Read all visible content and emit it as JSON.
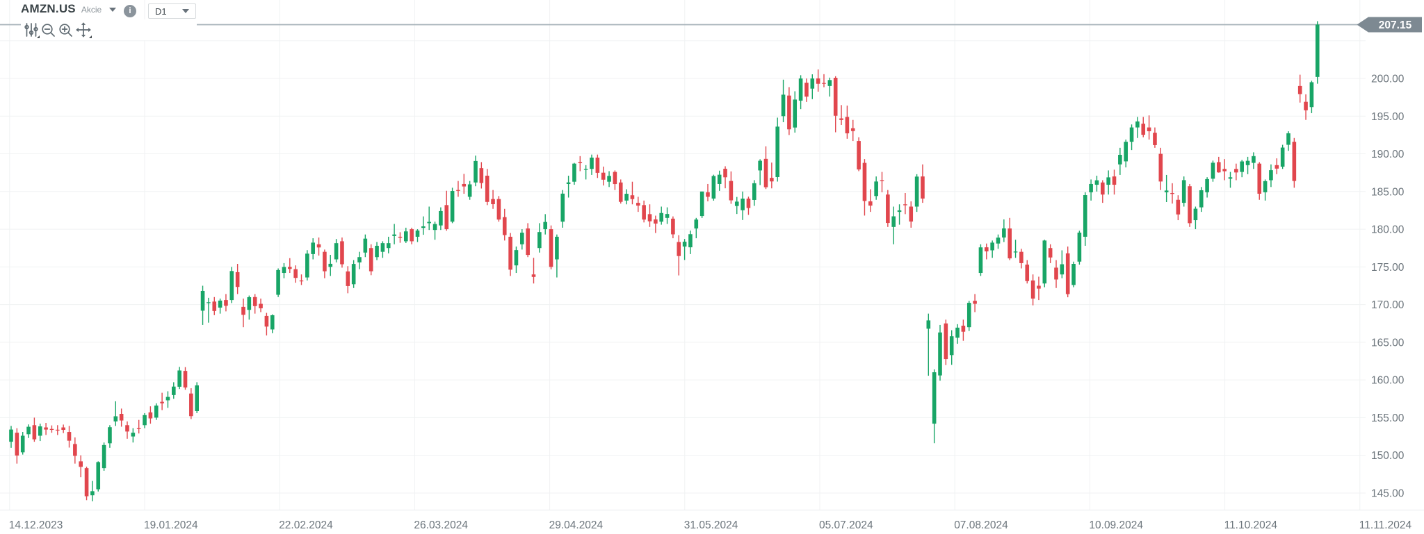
{
  "header": {
    "symbol": "AMZN.US",
    "instrument_label": "Akcie",
    "info_glyph": "i",
    "timeframe_value": "D1",
    "current_price_label": "207.15"
  },
  "toolbar": {
    "icons": [
      "indicators",
      "zoom-out",
      "zoom-in",
      "pan-crosshair"
    ]
  },
  "colors": {
    "background": "#ffffff",
    "grid_line": "#f0f2f3",
    "axis_separator": "#e8eaec",
    "axis_text": "#6c757c",
    "price_line": "#a7b3ba",
    "badge_bg": "#7d8992",
    "badge_text": "#ffffff",
    "icon": "#5f6a71",
    "symbol_text": "#3a4347"
  },
  "chart_data": {
    "type": "candlestick",
    "title": "AMZN.US D1 daily candlestick chart",
    "timeframe": "D1",
    "current_price": 207.15,
    "up_color": "#18a566",
    "down_color": "#e1464d",
    "grid": true,
    "y_axis": {
      "min": 143.5,
      "max": 208.5,
      "tick_step": 5,
      "tick_labels": [
        "200.00",
        "195.00",
        "190.00",
        "185.00",
        "180.00",
        "175.00",
        "170.00",
        "165.00",
        "160.00",
        "155.00",
        "150.00",
        "145.00"
      ]
    },
    "x_axis": {
      "tick_labels": [
        "14.12.2023",
        "19.01.2024",
        "22.02.2024",
        "26.03.2024",
        "29.04.2024",
        "31.05.2024",
        "05.07.2024",
        "07.08.2024",
        "10.09.2024",
        "11.10.2024",
        "11.11.2024"
      ]
    },
    "candles_ohlc": [
      [
        151.8,
        153.9,
        151.0,
        153.42
      ],
      [
        153.0,
        153.6,
        148.9,
        149.97
      ],
      [
        150.4,
        153.1,
        150.1,
        152.6
      ],
      [
        152.8,
        154.1,
        152.3,
        153.79
      ],
      [
        154.0,
        155.0,
        151.8,
        152.12
      ],
      [
        152.6,
        154.2,
        151.9,
        153.84
      ],
      [
        153.7,
        154.3,
        152.7,
        153.42
      ],
      [
        153.5,
        153.97,
        153.0,
        153.41
      ],
      [
        153.4,
        154.0,
        152.7,
        153.34
      ],
      [
        153.7,
        154.08,
        152.95,
        153.38
      ],
      [
        153.1,
        153.9,
        151.03,
        151.94
      ],
      [
        151.5,
        152.38,
        148.9,
        149.93
      ],
      [
        149.2,
        150.0,
        147.1,
        148.47
      ],
      [
        148.3,
        148.5,
        144.05,
        144.57
      ],
      [
        144.7,
        146.6,
        143.9,
        145.24
      ],
      [
        145.5,
        149.2,
        145.2,
        149.1
      ],
      [
        148.3,
        151.7,
        147.95,
        151.37
      ],
      [
        151.6,
        154.0,
        151.0,
        153.73
      ],
      [
        154.5,
        157.17,
        153.9,
        155.18
      ],
      [
        155.5,
        156.2,
        153.8,
        154.62
      ],
      [
        154.0,
        154.5,
        152.2,
        153.16
      ],
      [
        152.5,
        153.6,
        151.7,
        153.0
      ],
      [
        153.6,
        154.7,
        152.9,
        153.5
      ],
      [
        154.0,
        155.6,
        153.6,
        155.34
      ],
      [
        155.7,
        156.5,
        154.2,
        154.9
      ],
      [
        155.0,
        156.9,
        154.7,
        156.6
      ],
      [
        157.1,
        158.3,
        156.0,
        156.9
      ],
      [
        157.3,
        158.5,
        156.3,
        157.75
      ],
      [
        158.0,
        159.7,
        157.5,
        159.12
      ],
      [
        159.1,
        161.73,
        158.8,
        161.26
      ],
      [
        161.2,
        161.7,
        158.7,
        159.0
      ],
      [
        158.2,
        158.9,
        154.81,
        155.2
      ],
      [
        155.87,
        159.7,
        155.6,
        159.28
      ],
      [
        169.19,
        172.5,
        167.3,
        171.81
      ],
      [
        170.2,
        170.9,
        167.6,
        170.31
      ],
      [
        170.4,
        171.0,
        168.6,
        169.15
      ],
      [
        169.6,
        170.8,
        168.8,
        170.53
      ],
      [
        170.6,
        171.4,
        169.1,
        169.84
      ],
      [
        170.6,
        175.0,
        170.2,
        174.45
      ],
      [
        174.3,
        175.4,
        171.4,
        172.34
      ],
      [
        169.7,
        170.8,
        167.0,
        168.64
      ],
      [
        169.3,
        171.2,
        168.0,
        170.98
      ],
      [
        171.0,
        171.4,
        168.8,
        169.8
      ],
      [
        170.1,
        170.8,
        169.0,
        169.51
      ],
      [
        168.5,
        168.9,
        165.9,
        167.08
      ],
      [
        166.7,
        168.7,
        166.2,
        168.59
      ],
      [
        171.3,
        174.8,
        171.0,
        174.58
      ],
      [
        174.2,
        175.5,
        173.5,
        174.99
      ],
      [
        175.0,
        176.16,
        174.2,
        174.73
      ],
      [
        174.7,
        175.2,
        172.9,
        173.54
      ],
      [
        173.2,
        174.0,
        172.6,
        173.16
      ],
      [
        173.6,
        177.22,
        173.2,
        176.76
      ],
      [
        176.7,
        178.8,
        176.0,
        178.22
      ],
      [
        178.0,
        178.9,
        176.5,
        177.58
      ],
      [
        177.0,
        177.3,
        173.5,
        174.42
      ],
      [
        175.0,
        176.6,
        173.8,
        175.41
      ],
      [
        176.0,
        178.7,
        175.6,
        178.15
      ],
      [
        178.4,
        178.9,
        174.9,
        175.35
      ],
      [
        174.4,
        175.1,
        171.5,
        172.46
      ],
      [
        172.7,
        175.9,
        172.2,
        175.39
      ],
      [
        175.6,
        177.0,
        174.7,
        176.3
      ],
      [
        176.9,
        179.3,
        176.3,
        178.75
      ],
      [
        177.5,
        178.0,
        173.9,
        174.42
      ],
      [
        176.3,
        178.3,
        175.9,
        177.8
      ],
      [
        177.0,
        178.4,
        176.2,
        178.15
      ],
      [
        177.5,
        179.0,
        176.8,
        178.15
      ],
      [
        179.1,
        180.7,
        178.0,
        179.3
      ],
      [
        179.0,
        179.6,
        178.2,
        178.87
      ],
      [
        178.4,
        180.2,
        178.17,
        179.71
      ],
      [
        180.0,
        180.2,
        178.0,
        178.4
      ],
      [
        179.0,
        180.0,
        178.3,
        179.83
      ],
      [
        180.17,
        181.7,
        179.26,
        180.38
      ],
      [
        180.8,
        183.0,
        179.9,
        180.97
      ],
      [
        179.9,
        181.0,
        178.6,
        180.69
      ],
      [
        180.5,
        182.9,
        179.9,
        182.41
      ],
      [
        183.2,
        185.1,
        179.8,
        180.0
      ],
      [
        181.0,
        185.5,
        180.8,
        185.07
      ],
      [
        185.2,
        186.4,
        184.3,
        185.19
      ],
      [
        186.0,
        187.34,
        184.7,
        185.67
      ],
      [
        184.3,
        186.4,
        183.9,
        185.95
      ],
      [
        186.2,
        189.77,
        185.7,
        189.05
      ],
      [
        188.1,
        188.9,
        185.4,
        186.13
      ],
      [
        187.1,
        188.0,
        183.2,
        183.62
      ],
      [
        184.0,
        185.2,
        182.7,
        183.32
      ],
      [
        184.0,
        184.4,
        181.0,
        181.28
      ],
      [
        181.6,
        182.7,
        178.5,
        179.22
      ],
      [
        179.0,
        179.5,
        173.8,
        174.63
      ],
      [
        175.2,
        177.7,
        174.2,
        177.23
      ],
      [
        178.0,
        180.0,
        177.3,
        179.54
      ],
      [
        180.1,
        180.8,
        176.3,
        176.59
      ],
      [
        174.0,
        176.2,
        172.8,
        173.67
      ],
      [
        177.5,
        180.8,
        176.9,
        179.62
      ],
      [
        180.0,
        182.0,
        179.3,
        180.96
      ],
      [
        180.0,
        180.5,
        174.68,
        175.0
      ],
      [
        176.0,
        179.3,
        173.6,
        179.0
      ],
      [
        181.0,
        185.2,
        180.2,
        184.72
      ],
      [
        186.0,
        187.1,
        184.2,
        186.21
      ],
      [
        186.3,
        188.8,
        185.9,
        188.7
      ],
      [
        188.9,
        189.7,
        187.7,
        188.76
      ],
      [
        187.9,
        188.5,
        186.6,
        188.0
      ],
      [
        188.0,
        189.9,
        187.2,
        189.5
      ],
      [
        189.5,
        189.9,
        186.8,
        187.48
      ],
      [
        187.5,
        188.31,
        185.8,
        186.57
      ],
      [
        186.3,
        187.7,
        185.6,
        187.07
      ],
      [
        187.6,
        187.8,
        185.2,
        185.99
      ],
      [
        186.2,
        186.6,
        183.4,
        183.63
      ],
      [
        183.8,
        185.3,
        183.3,
        184.7
      ],
      [
        184.5,
        186.3,
        183.3,
        184.0
      ],
      [
        183.5,
        184.3,
        182.3,
        183.13
      ],
      [
        183.2,
        183.8,
        180.9,
        181.28
      ],
      [
        182.0,
        183.3,
        180.3,
        181.05
      ],
      [
        181.3,
        181.8,
        179.5,
        180.75
      ],
      [
        181.0,
        183.0,
        180.6,
        182.15
      ],
      [
        181.5,
        182.9,
        180.7,
        182.02
      ],
      [
        181.4,
        181.7,
        178.8,
        179.32
      ],
      [
        178.3,
        179.21,
        173.87,
        176.44
      ],
      [
        177.7,
        178.7,
        175.92,
        178.34
      ],
      [
        177.6,
        179.82,
        176.7,
        179.34
      ],
      [
        180.1,
        181.5,
        178.8,
        181.28
      ],
      [
        181.75,
        185.0,
        181.49,
        185.0
      ],
      [
        184.9,
        186.0,
        183.7,
        184.3
      ],
      [
        184.07,
        187.23,
        183.79,
        187.06
      ],
      [
        186.0,
        187.77,
        185.09,
        187.23
      ],
      [
        188.02,
        188.35,
        185.43,
        186.89
      ],
      [
        186.4,
        187.67,
        183.37,
        183.83
      ],
      [
        183.08,
        184.28,
        182.02,
        183.66
      ],
      [
        182.52,
        185.0,
        181.22,
        184.06
      ],
      [
        184.06,
        184.32,
        181.9,
        182.81
      ],
      [
        183.88,
        186.51,
        183.1,
        186.1
      ],
      [
        187.8,
        189.28,
        185.86,
        189.08
      ],
      [
        189.33,
        191.0,
        185.33,
        185.57
      ],
      [
        186.81,
        188.84,
        185.42,
        186.34
      ],
      [
        186.92,
        194.8,
        186.32,
        193.61
      ],
      [
        195.0,
        199.84,
        194.2,
        197.85
      ],
      [
        197.73,
        198.85,
        192.5,
        193.25
      ],
      [
        193.49,
        198.3,
        192.82,
        197.2
      ],
      [
        197.06,
        200.43,
        195.93,
        200.0
      ],
      [
        199.44,
        200.0,
        196.88,
        197.59
      ],
      [
        198.65,
        200.55,
        197.26,
        200.0
      ],
      [
        200.01,
        201.2,
        198.25,
        199.29
      ],
      [
        199.4,
        200.57,
        198.84,
        199.34
      ],
      [
        199.0,
        200.11,
        197.6,
        199.79
      ],
      [
        200.09,
        200.3,
        192.86,
        195.05
      ],
      [
        194.7,
        196.47,
        193.83,
        194.49
      ],
      [
        194.9,
        196.4,
        192.0,
        192.72
      ],
      [
        193.4,
        194.5,
        191.7,
        193.02
      ],
      [
        191.7,
        192.2,
        187.7,
        187.93
      ],
      [
        188.8,
        189.3,
        181.81,
        183.75
      ],
      [
        183.7,
        185.3,
        182.3,
        183.13
      ],
      [
        184.4,
        187.0,
        183.9,
        186.33
      ],
      [
        186.5,
        187.6,
        184.9,
        186.41
      ],
      [
        184.6,
        185.2,
        180.3,
        180.83
      ],
      [
        180.3,
        183.0,
        178.0,
        181.71
      ],
      [
        182.3,
        183.3,
        180.6,
        182.5
      ],
      [
        183.3,
        184.8,
        182.0,
        183.2
      ],
      [
        183.0,
        183.7,
        180.2,
        181.02
      ],
      [
        183.0,
        187.3,
        182.3,
        186.98
      ],
      [
        187.0,
        188.6,
        183.5,
        184.07
      ],
      [
        166.8,
        168.8,
        160.56,
        167.9
      ],
      [
        154.2,
        161.4,
        151.61,
        161.02
      ],
      [
        160.6,
        167.3,
        159.9,
        166.3
      ],
      [
        167.5,
        168.0,
        161.97,
        162.77
      ],
      [
        163.3,
        166.6,
        162.0,
        165.8
      ],
      [
        165.6,
        167.4,
        164.8,
        166.94
      ],
      [
        167.2,
        168.0,
        165.2,
        166.4
      ],
      [
        167.0,
        170.5,
        166.5,
        170.23
      ],
      [
        170.5,
        171.4,
        169.0,
        170.1
      ],
      [
        174.2,
        178.0,
        173.8,
        177.59
      ],
      [
        177.6,
        178.1,
        176.0,
        177.06
      ],
      [
        177.2,
        178.5,
        176.2,
        178.22
      ],
      [
        178.1,
        179.3,
        177.4,
        178.88
      ],
      [
        178.9,
        181.3,
        178.3,
        180.11
      ],
      [
        180.1,
        181.5,
        175.9,
        176.13
      ],
      [
        177.0,
        178.6,
        176.2,
        177.04
      ],
      [
        177.0,
        177.4,
        174.8,
        175.5
      ],
      [
        175.3,
        175.9,
        172.8,
        173.12
      ],
      [
        173.2,
        174.0,
        169.9,
        170.8
      ],
      [
        172.5,
        173.7,
        170.6,
        172.12
      ],
      [
        172.8,
        178.6,
        172.3,
        178.5
      ],
      [
        177.5,
        178.0,
        175.5,
        176.25
      ],
      [
        174.9,
        175.9,
        172.2,
        173.33
      ],
      [
        174.0,
        177.2,
        173.5,
        175.35
      ],
      [
        176.8,
        177.7,
        170.97,
        171.39
      ],
      [
        172.6,
        175.7,
        172.3,
        175.4
      ],
      [
        175.7,
        179.8,
        175.3,
        179.55
      ],
      [
        179.0,
        184.9,
        177.8,
        184.52
      ],
      [
        184.9,
        186.6,
        183.8,
        186.0
      ],
      [
        185.9,
        187.1,
        185.0,
        186.49
      ],
      [
        186.2,
        186.5,
        183.5,
        184.6
      ],
      [
        185.9,
        187.8,
        184.6,
        186.88
      ],
      [
        187.0,
        187.9,
        184.6,
        185.9
      ],
      [
        188.6,
        190.8,
        187.2,
        189.87
      ],
      [
        189.0,
        191.9,
        188.2,
        191.6
      ],
      [
        191.6,
        193.9,
        190.5,
        193.5
      ],
      [
        193.5,
        194.9,
        192.1,
        194.3
      ],
      [
        194.0,
        194.9,
        192.2,
        192.53
      ],
      [
        193.5,
        195.1,
        191.9,
        193.0
      ],
      [
        192.8,
        193.5,
        190.8,
        191.16
      ],
      [
        190.0,
        190.8,
        185.2,
        186.33
      ],
      [
        184.9,
        187.2,
        183.6,
        185.13
      ],
      [
        184.8,
        186.1,
        183.4,
        184.76
      ],
      [
        183.9,
        184.5,
        181.2,
        181.96
      ],
      [
        183.5,
        187.0,
        183.0,
        186.51
      ],
      [
        185.7,
        186.0,
        180.3,
        180.8
      ],
      [
        181.2,
        183.0,
        180.0,
        182.72
      ],
      [
        182.9,
        185.6,
        182.3,
        185.17
      ],
      [
        184.9,
        186.9,
        184.2,
        186.65
      ],
      [
        186.7,
        189.1,
        186.3,
        188.82
      ],
      [
        188.9,
        189.6,
        187.5,
        187.54
      ],
      [
        188.0,
        189.3,
        186.5,
        187.69
      ],
      [
        186.7,
        187.6,
        185.5,
        186.89
      ],
      [
        188.0,
        188.7,
        186.5,
        187.53
      ],
      [
        187.6,
        189.2,
        186.9,
        188.99
      ],
      [
        188.5,
        189.6,
        187.3,
        189.07
      ],
      [
        188.8,
        190.2,
        188.0,
        189.7
      ],
      [
        188.7,
        188.9,
        183.9,
        184.71
      ],
      [
        184.9,
        186.6,
        183.8,
        186.38
      ],
      [
        186.5,
        188.6,
        185.6,
        187.83
      ],
      [
        188.5,
        189.4,
        187.3,
        188.04
      ],
      [
        188.3,
        191.2,
        188.0,
        190.83
      ],
      [
        191.2,
        193.0,
        190.4,
        192.73
      ],
      [
        191.6,
        192.1,
        185.5,
        186.4
      ],
      [
        199.0,
        200.5,
        196.8,
        197.93
      ],
      [
        196.9,
        197.9,
        194.5,
        195.78
      ],
      [
        196.2,
        199.7,
        195.4,
        199.5
      ],
      [
        200.2,
        207.6,
        199.3,
        207.15
      ]
    ]
  }
}
